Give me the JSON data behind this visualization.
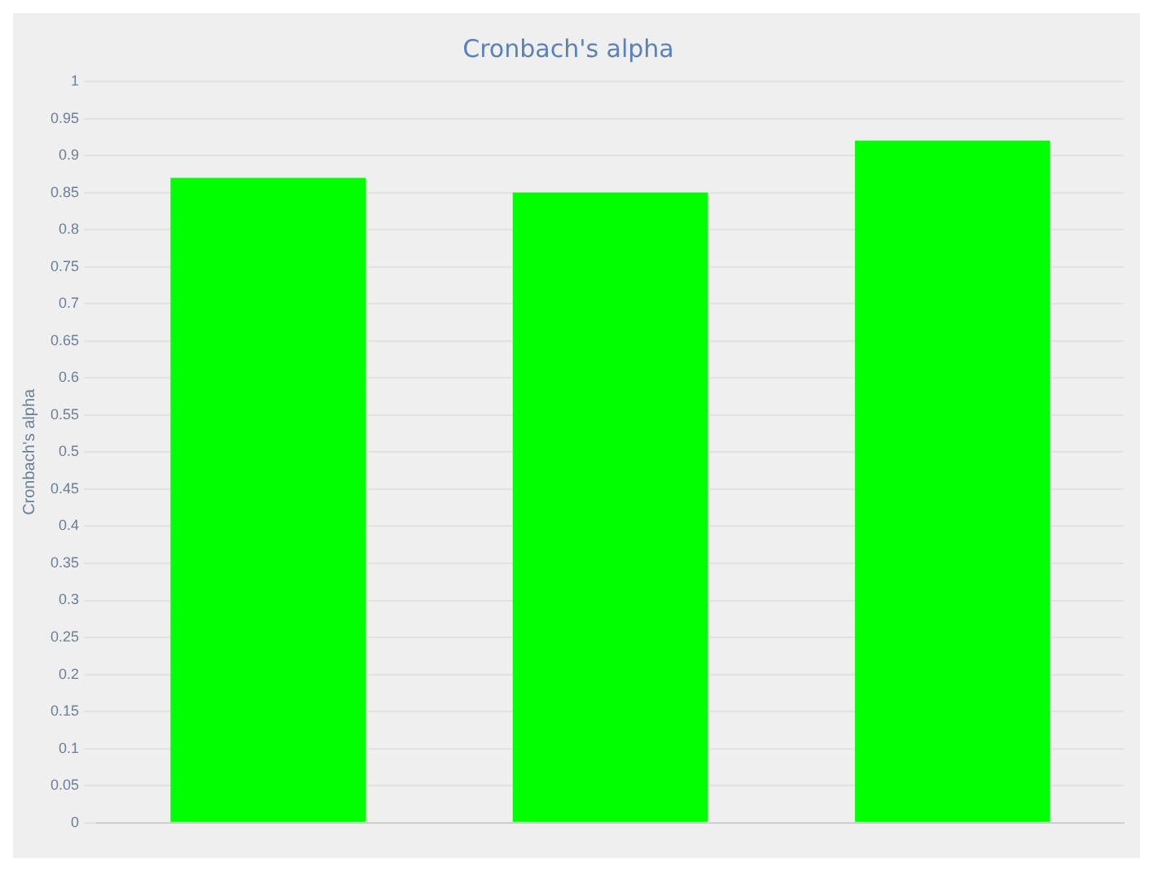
{
  "chart_data": {
    "type": "bar",
    "title": "Cronbach's alpha",
    "ylabel": "Cronbach's alpha",
    "categories": [
      null,
      null,
      null
    ],
    "values": [
      0.87,
      0.85,
      0.92
    ],
    "color": "#00ff00",
    "ylim": [
      0,
      1
    ],
    "yticks": [
      0,
      0.05,
      0.1,
      0.15,
      0.2,
      0.25,
      0.3,
      0.35,
      0.4,
      0.45,
      0.5,
      0.55,
      0.6,
      0.65,
      0.7,
      0.75,
      0.8,
      0.85,
      0.9,
      0.95,
      1
    ],
    "grid": "y",
    "legend": false
  }
}
